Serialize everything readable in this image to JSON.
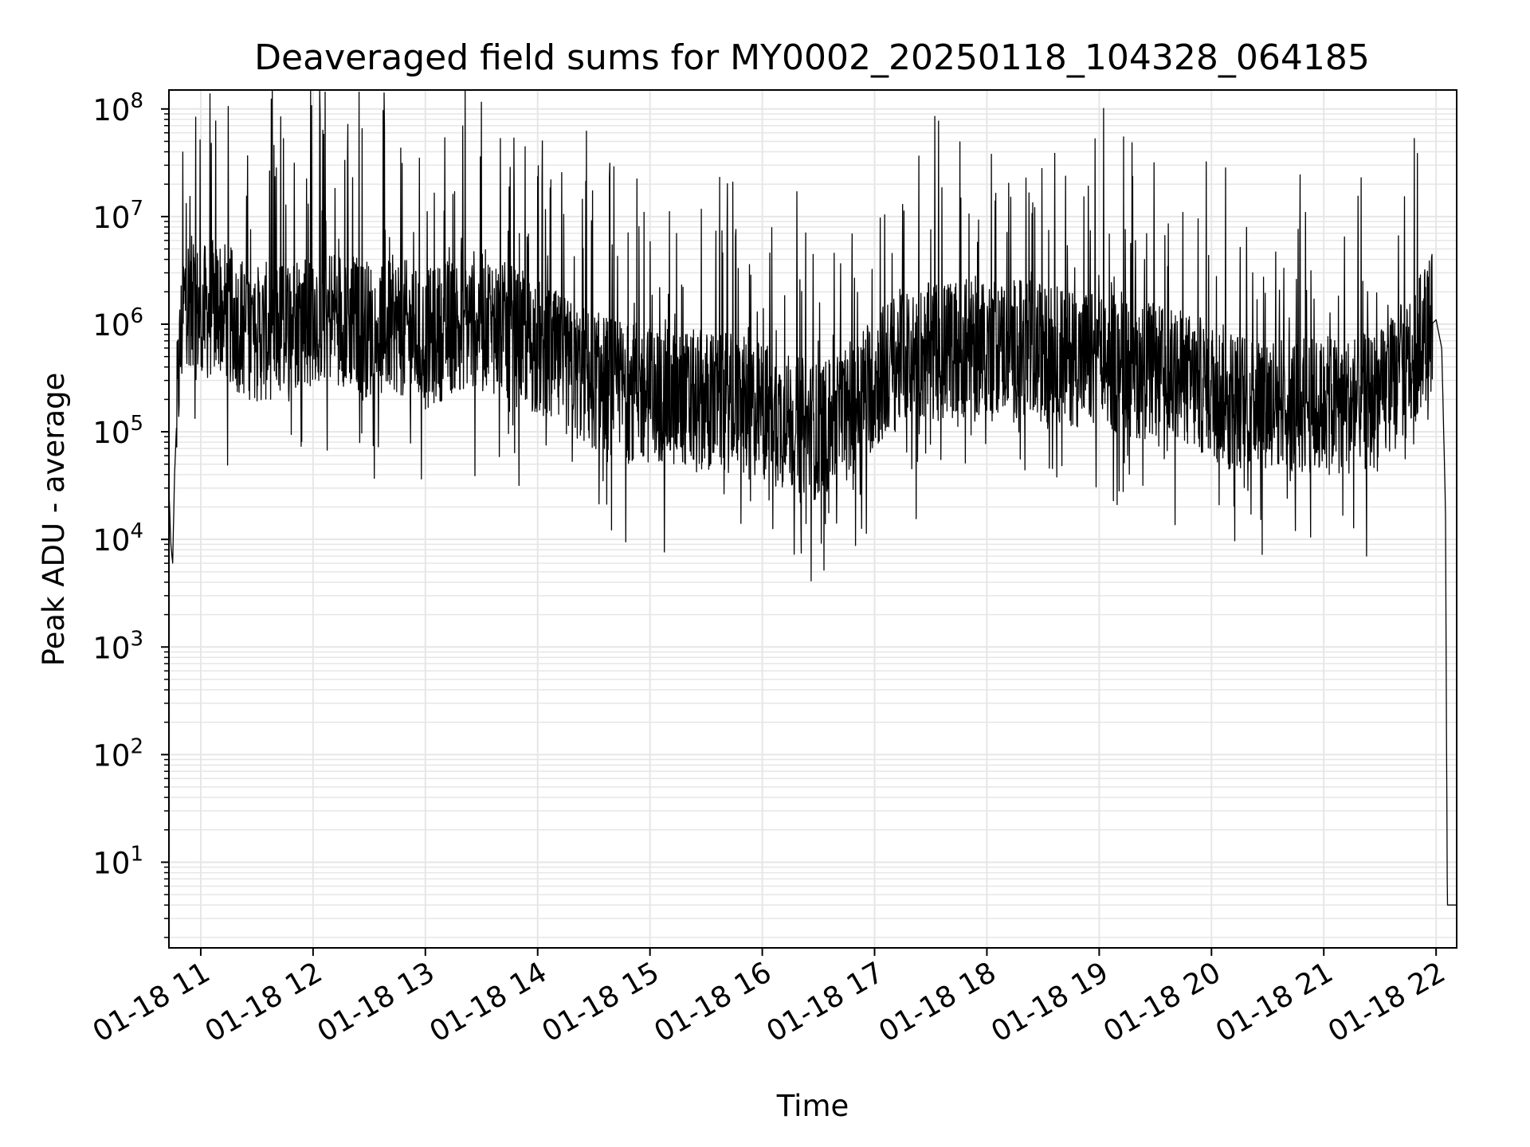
{
  "chart_data": {
    "type": "line",
    "title": "Deaveraged field sums for MY0002_20250118_104328_064185",
    "xlabel": "Time",
    "ylabel": "Peak ADU - average",
    "yscale": "log",
    "ylim": [
      1.6,
      150000000
    ],
    "xlim": [
      "2025-01-18 10:43",
      "2025-01-18 22:11"
    ],
    "grid": true,
    "line_color": "#000000",
    "grid_color": "#e6e6e6",
    "x_ticks": [
      "01-18 11",
      "01-18 12",
      "01-18 13",
      "01-18 14",
      "01-18 15",
      "01-18 16",
      "01-18 17",
      "01-18 18",
      "01-18 19",
      "01-18 20",
      "01-18 21",
      "01-18 22"
    ],
    "y_ticks": [
      {
        "base": "10",
        "exp": "1"
      },
      {
        "base": "10",
        "exp": "2"
      },
      {
        "base": "10",
        "exp": "3"
      },
      {
        "base": "10",
        "exp": "4"
      },
      {
        "base": "10",
        "exp": "5"
      },
      {
        "base": "10",
        "exp": "6"
      },
      {
        "base": "10",
        "exp": "7"
      },
      {
        "base": "10",
        "exp": "8"
      }
    ],
    "series": [
      {
        "x": [
          "2025-01-18 10:43",
          "2025-01-18 10:44",
          "2025-01-18 10:45",
          "2025-01-18 10:46",
          "2025-01-18 10:48",
          "2025-01-18 10:50",
          "2025-01-18 10:52",
          "2025-01-18 10:55",
          "2025-01-18 11:00",
          "2025-01-18 11:10",
          "2025-01-18 11:20",
          "2025-01-18 11:30",
          "2025-01-18 11:40",
          "2025-01-18 11:50",
          "2025-01-18 12:00",
          "2025-01-18 12:15",
          "2025-01-18 12:30",
          "2025-01-18 12:45",
          "2025-01-18 13:00",
          "2025-01-18 13:15",
          "2025-01-18 13:30",
          "2025-01-18 13:45",
          "2025-01-18 14:00",
          "2025-01-18 14:15",
          "2025-01-18 14:30",
          "2025-01-18 14:45",
          "2025-01-18 15:00",
          "2025-01-18 15:15",
          "2025-01-18 15:30",
          "2025-01-18 15:45",
          "2025-01-18 16:00",
          "2025-01-18 16:15",
          "2025-01-18 16:30",
          "2025-01-18 16:45",
          "2025-01-18 17:00",
          "2025-01-18 17:15",
          "2025-01-18 17:30",
          "2025-01-18 17:45",
          "2025-01-18 18:00",
          "2025-01-18 18:15",
          "2025-01-18 18:30",
          "2025-01-18 18:45",
          "2025-01-18 19:00",
          "2025-01-18 19:15",
          "2025-01-18 19:30",
          "2025-01-18 19:45",
          "2025-01-18 20:00",
          "2025-01-18 20:15",
          "2025-01-18 20:30",
          "2025-01-18 20:45",
          "2025-01-18 21:00",
          "2025-01-18 21:15",
          "2025-01-18 21:30",
          "2025-01-18 21:45",
          "2025-01-18 21:55",
          "2025-01-18 22:00",
          "2025-01-18 22:03",
          "2025-01-18 22:05",
          "2025-01-18 22:06",
          "2025-01-18 22:07",
          "2025-01-18 22:11"
        ],
        "values": [
          30000,
          9000,
          6000,
          40000,
          300000,
          1000000,
          2000000,
          1500000,
          1200000,
          1500000,
          1000000,
          800000,
          900000,
          1100000,
          1300000,
          1200000,
          900000,
          1000000,
          700000,
          1000000,
          1200000,
          800000,
          600000,
          400000,
          300000,
          250000,
          220000,
          200000,
          200000,
          180000,
          160000,
          120000,
          100000,
          150000,
          300000,
          500000,
          550000,
          600000,
          650000,
          600000,
          550000,
          500000,
          450000,
          400000,
          350000,
          300000,
          250000,
          200000,
          200000,
          180000,
          170000,
          180000,
          200000,
          400000,
          900000,
          1100000,
          600000,
          20000,
          4,
          4,
          4
        ]
      }
    ]
  }
}
